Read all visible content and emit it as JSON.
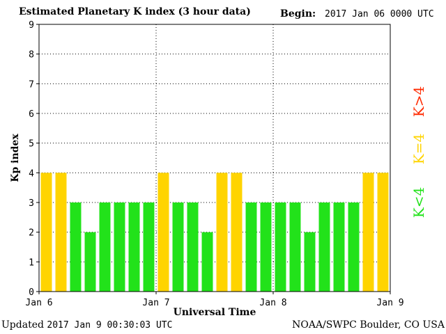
{
  "header": {
    "title": "Estimated Planetary K index (3 hour data)",
    "begin_label": "Begin:",
    "begin_value": "2017 Jan 06 0000 UTC"
  },
  "footer": {
    "updated_label": "Updated",
    "updated_value": "2017 Jan  9 00:30:03 UTC",
    "credit": "NOAA/SWPC Boulder, CO USA"
  },
  "legend": [
    {
      "label": "K<4",
      "color": "#22e21a"
    },
    {
      "label": "K=4",
      "color": "#ffd400"
    },
    {
      "label": "K>4",
      "color": "#ff2a00"
    }
  ],
  "chart_data": {
    "type": "bar",
    "title": "Estimated Planetary K index (3 hour data)",
    "xlabel": "Universal Time",
    "ylabel": "Kp index",
    "ylim": [
      0,
      9
    ],
    "yticks": [
      0,
      1,
      2,
      3,
      4,
      5,
      6,
      7,
      8,
      9
    ],
    "x_tick_labels": [
      "Jan 6",
      "Jan 7",
      "Jan 8",
      "Jan 9"
    ],
    "grid": true,
    "legend_placement": "right",
    "values": [
      4,
      4,
      3,
      2,
      3,
      3,
      3,
      3,
      4,
      3,
      3,
      2,
      4,
      4,
      3,
      3,
      3,
      3,
      2,
      3,
      3,
      3,
      4,
      4
    ],
    "colors": {
      "below": "#22e21a",
      "equal": "#ffd400",
      "above": "#ff2a00"
    }
  }
}
